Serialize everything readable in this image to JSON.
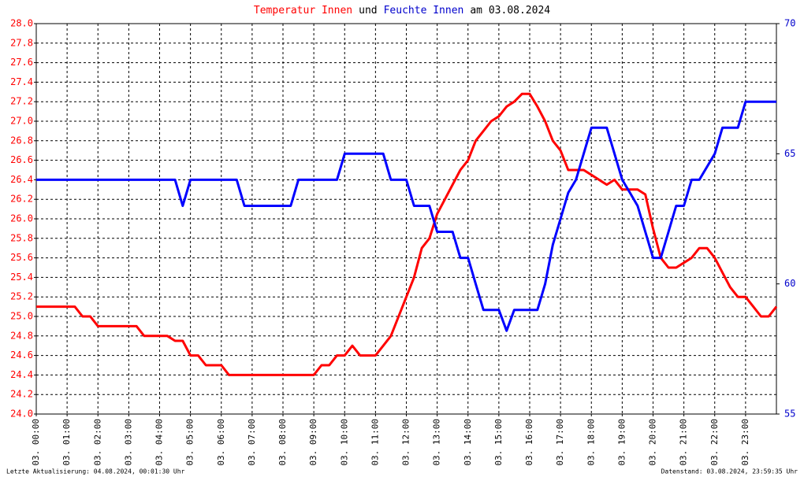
{
  "chart_data": {
    "type": "line",
    "title": [
      "Temperatur Innen",
      "und",
      "Feuchte Innen",
      "am 03.08.2024"
    ],
    "title_colors": [
      "#ff0000",
      "#000000",
      "#0000cc",
      "#000000"
    ],
    "footer_left": "Letzte Aktualisierung: 04.08.2024, 00:01:30 Uhr",
    "footer_right": "Datenstand: 03.08.2024, 23:59:35 Uhr",
    "xlim": [
      0,
      24
    ],
    "xticks": [
      {
        "value": 0,
        "label": "03. 00:00"
      },
      {
        "value": 1,
        "label": "03. 01:00"
      },
      {
        "value": 2,
        "label": "03. 02:00"
      },
      {
        "value": 3,
        "label": "03. 03:00"
      },
      {
        "value": 4,
        "label": "03. 04:00"
      },
      {
        "value": 5,
        "label": "03. 05:00"
      },
      {
        "value": 6,
        "label": "03. 06:00"
      },
      {
        "value": 7,
        "label": "03. 07:00"
      },
      {
        "value": 8,
        "label": "03. 08:00"
      },
      {
        "value": 9,
        "label": "03. 09:00"
      },
      {
        "value": 10,
        "label": "03. 10:00"
      },
      {
        "value": 11,
        "label": "03. 11:00"
      },
      {
        "value": 12,
        "label": "03. 12:00"
      },
      {
        "value": 13,
        "label": "03. 13:00"
      },
      {
        "value": 14,
        "label": "03. 14:00"
      },
      {
        "value": 15,
        "label": "03. 15:00"
      },
      {
        "value": 16,
        "label": "03. 16:00"
      },
      {
        "value": 17,
        "label": "03. 17:00"
      },
      {
        "value": 18,
        "label": "03. 18:00"
      },
      {
        "value": 19,
        "label": "03. 19:00"
      },
      {
        "value": 20,
        "label": "03. 20:00"
      },
      {
        "value": 21,
        "label": "03. 21:00"
      },
      {
        "value": 22,
        "label": "03. 22:00"
      },
      {
        "value": 23,
        "label": "03. 23:00"
      }
    ],
    "ylim": [
      24,
      28
    ],
    "yticks": [
      {
        "value": 24,
        "label": "24.0"
      },
      24.2,
      24.4,
      24.6,
      24.8,
      {
        "value": 25,
        "label": "25.0"
      },
      25.2,
      25.4,
      25.6,
      25.8,
      {
        "value": 26,
        "label": "26.0"
      },
      26.2,
      26.4,
      26.6,
      26.8,
      {
        "value": 27,
        "label": "27.0"
      },
      27.2,
      27.4,
      27.6,
      27.8,
      {
        "value": 28,
        "label": "28.0"
      }
    ],
    "y2lim": [
      55,
      70
    ],
    "y2ticks": [
      55,
      60,
      65,
      70
    ],
    "grid": true,
    "x": [
      0,
      0.25,
      0.5,
      0.75,
      1,
      1.25,
      1.5,
      1.75,
      2,
      2.25,
      2.5,
      2.75,
      3,
      3.25,
      3.5,
      3.75,
      4,
      4.25,
      4.5,
      4.75,
      5,
      5.25,
      5.5,
      5.75,
      6,
      6.25,
      6.5,
      6.75,
      7,
      7.25,
      7.5,
      7.75,
      8,
      8.25,
      8.5,
      8.75,
      9,
      9.25,
      9.5,
      9.75,
      10,
      10.25,
      10.5,
      10.75,
      11,
      11.25,
      11.5,
      11.75,
      12,
      12.25,
      12.5,
      12.75,
      13,
      13.25,
      13.5,
      13.75,
      14,
      14.25,
      14.5,
      14.75,
      15,
      15.25,
      15.5,
      15.75,
      16,
      16.25,
      16.5,
      16.75,
      17,
      17.25,
      17.5,
      17.75,
      18,
      18.25,
      18.5,
      18.75,
      19,
      19.25,
      19.5,
      19.75,
      20,
      20.25,
      20.5,
      20.75,
      21,
      21.25,
      21.5,
      21.75,
      22,
      22.25,
      22.5,
      22.75,
      23,
      23.25,
      23.5,
      23.75,
      24
    ],
    "series": [
      {
        "name": "Temperatur Innen",
        "color": "#ff0000",
        "axis": "y",
        "values": [
          25.1,
          25.1,
          25.1,
          25.1,
          25.1,
          25.1,
          25.0,
          25.0,
          24.9,
          24.9,
          24.9,
          24.9,
          24.9,
          24.9,
          24.8,
          24.8,
          24.8,
          24.8,
          24.75,
          24.75,
          24.6,
          24.6,
          24.5,
          24.5,
          24.5,
          24.4,
          24.4,
          24.4,
          24.4,
          24.4,
          24.4,
          24.4,
          24.4,
          24.4,
          24.4,
          24.4,
          24.4,
          24.5,
          24.5,
          24.6,
          24.6,
          24.7,
          24.6,
          24.6,
          24.6,
          24.7,
          24.8,
          25.0,
          25.2,
          25.4,
          25.7,
          25.8,
          26.05,
          26.2,
          26.35,
          26.5,
          26.6,
          26.8,
          26.9,
          27.0,
          27.05,
          27.15,
          27.2,
          27.28,
          27.28,
          27.15,
          27.0,
          26.8,
          26.7,
          26.5,
          26.5,
          26.5,
          26.45,
          26.4,
          26.35,
          26.4,
          26.3,
          26.3,
          26.3,
          26.25,
          25.9,
          25.6,
          25.5,
          25.5,
          25.55,
          25.6,
          25.7,
          25.7,
          25.6,
          25.45,
          25.3,
          25.2,
          25.2,
          25.1,
          25.0,
          25.0,
          25.1
        ]
      },
      {
        "name": "Feuchte Innen",
        "color": "#0000ff",
        "axis": "y2",
        "values": [
          64,
          64,
          64,
          64,
          64,
          64,
          64,
          64,
          64,
          64,
          64,
          64,
          64,
          64,
          64,
          64,
          64,
          64,
          64,
          63,
          64,
          64,
          64,
          64,
          64,
          64,
          64,
          63,
          63,
          63,
          63,
          63,
          63,
          63,
          64,
          64,
          64,
          64,
          64,
          64,
          65,
          65,
          65,
          65,
          65,
          65,
          64,
          64,
          64,
          63,
          63,
          63,
          62,
          62,
          62,
          61,
          61,
          60,
          59,
          59,
          59,
          58.2,
          59,
          59,
          59,
          59,
          60,
          61.5,
          62.5,
          63.5,
          64,
          65,
          66,
          66,
          66,
          65,
          64,
          63.5,
          63,
          62,
          61,
          61,
          62,
          63,
          63,
          64,
          64,
          64.5,
          65,
          66,
          66,
          66,
          67,
          67,
          67,
          67,
          67
        ]
      }
    ]
  }
}
